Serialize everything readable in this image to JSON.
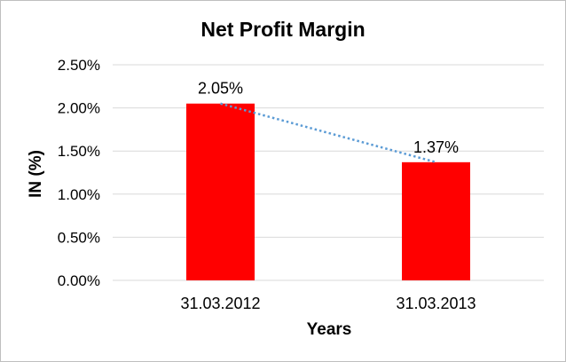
{
  "chart_data": {
    "type": "bar",
    "title": "Net Profit Margin",
    "xlabel": "Years",
    "ylabel": "IN (%)",
    "categories": [
      "31.03.2012",
      "31.03.2013"
    ],
    "values": [
      2.05,
      1.37
    ],
    "data_labels": [
      "2.05%",
      "1.37%"
    ],
    "ylim": [
      0,
      2.5
    ],
    "yticks": [
      0,
      0.5,
      1.0,
      1.5,
      2.0,
      2.5
    ],
    "ytick_labels": [
      "0.00%",
      "0.50%",
      "1.00%",
      "1.50%",
      "2.00%",
      "2.50%"
    ],
    "grid": true,
    "legend": "none",
    "trendline": "linear",
    "colors": {
      "bar": "#ff0000",
      "trendline": "#5b9bd5",
      "grid": "#d9d9d9"
    }
  }
}
